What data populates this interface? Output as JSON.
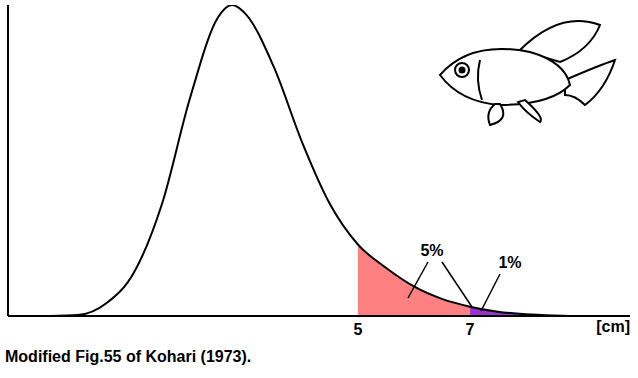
{
  "chart_data": {
    "type": "area",
    "x": [
      -0.5,
      0,
      0.5,
      1,
      1.5,
      2,
      2.5,
      2.75,
      3,
      3.5,
      4,
      4.5,
      5,
      5.5,
      6,
      6.5,
      7,
      7.5,
      8,
      8.5,
      9,
      9.5
    ],
    "values": [
      0,
      0.3,
      4,
      14,
      36,
      70,
      96,
      100,
      97,
      80,
      56,
      36,
      23,
      15.5,
      9.5,
      5.5,
      3,
      1.4,
      0.6,
      0.2,
      0,
      0
    ],
    "color": "#000000",
    "xlim": [
      -1.25,
      9.86
    ],
    "xticks": [
      5,
      7
    ],
    "ylim": [
      0,
      100
    ],
    "tick_labels": "x",
    "x_label": "[cm]",
    "caption": "Modified Fig.55 of Kohari (1973).",
    "shaded": [
      {
        "from": 5,
        "to": 7,
        "color": "#ff8080",
        "label": "5%"
      },
      {
        "from": 7,
        "color": "#9933cc",
        "label": "1%"
      }
    ]
  }
}
